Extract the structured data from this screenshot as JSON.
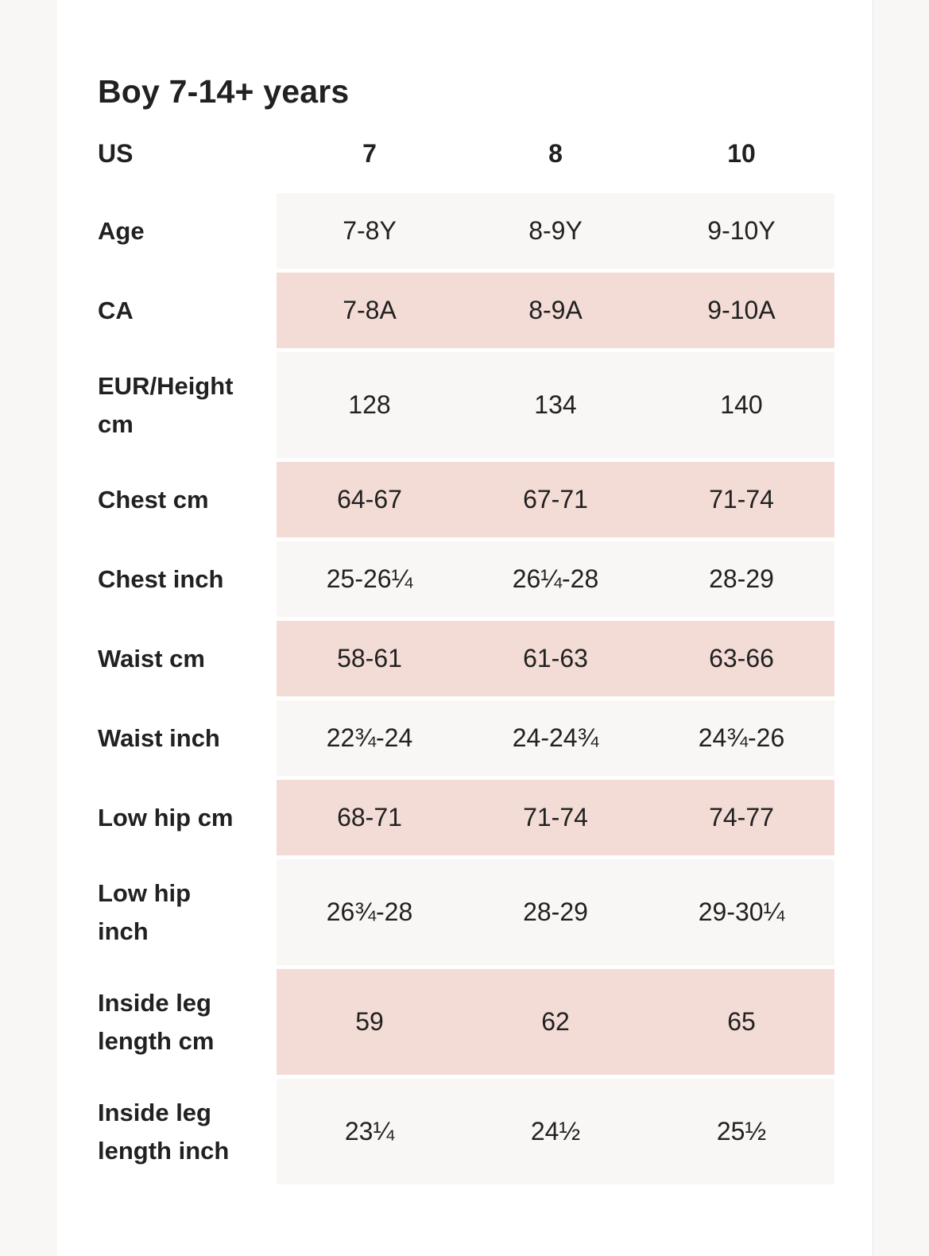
{
  "page": {
    "title": "Boy 7-14+ years",
    "colors": {
      "text": "#212121",
      "accent_pink": "#f3dcd5",
      "row_offwhite": "#f8f7f5",
      "side_strip": "#f8f7f5",
      "divider": "#e7e4e0",
      "page_bg": "#ffffff"
    }
  },
  "table": {
    "header": {
      "label": "US",
      "columns": [
        "7",
        "8",
        "10"
      ]
    },
    "rows": [
      {
        "label": "Age",
        "values": [
          "7-8Y",
          "8-9Y",
          "9-10Y"
        ],
        "tone": "offwhite",
        "tall": false
      },
      {
        "label": "CA",
        "values": [
          "7-8A",
          "8-9A",
          "9-10A"
        ],
        "tone": "pink",
        "tall": false
      },
      {
        "label": "EUR/Height\ncm",
        "values": [
          "128",
          "134",
          "140"
        ],
        "tone": "offwhite",
        "tall": true
      },
      {
        "label": "Chest cm",
        "values": [
          "64-67",
          "67-71",
          "71-74"
        ],
        "tone": "pink",
        "tall": false
      },
      {
        "label": "Chest inch",
        "values": [
          "25-26¼",
          "26¼-28",
          "28-29"
        ],
        "tone": "offwhite",
        "tall": false
      },
      {
        "label": "Waist cm",
        "values": [
          "58-61",
          "61-63",
          "63-66"
        ],
        "tone": "pink",
        "tall": false
      },
      {
        "label": "Waist inch",
        "values": [
          "22¾-24",
          "24-24¾",
          "24¾-26"
        ],
        "tone": "offwhite",
        "tall": false
      },
      {
        "label": "Low hip cm",
        "values": [
          "68-71",
          "71-74",
          "74-77"
        ],
        "tone": "pink",
        "tall": false
      },
      {
        "label": "Low hip\ninch",
        "values": [
          "26¾-28",
          "28-29",
          "29-30¼"
        ],
        "tone": "offwhite",
        "tall": true
      },
      {
        "label": "Inside leg\nlength cm",
        "values": [
          "59",
          "62",
          "65"
        ],
        "tone": "pink",
        "tall": true
      },
      {
        "label": "Inside leg\nlength inch",
        "values": [
          "23¼",
          "24½",
          "25½"
        ],
        "tone": "offwhite",
        "tall": true
      }
    ]
  }
}
